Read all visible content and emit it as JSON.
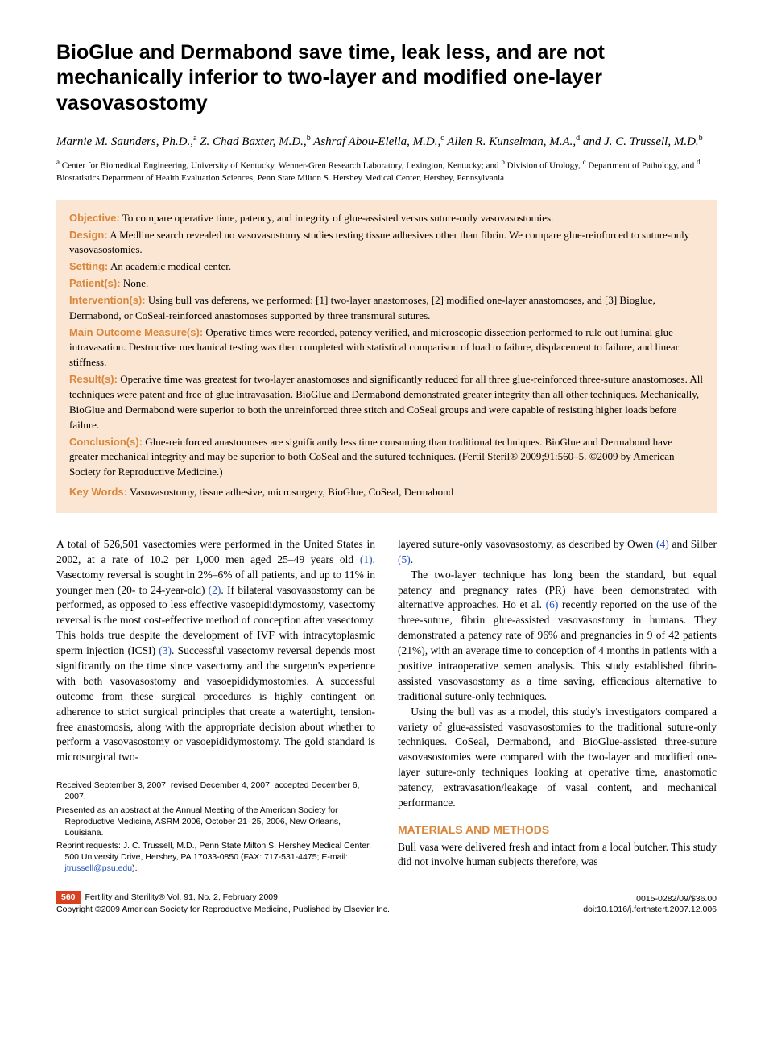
{
  "title": "BioGlue and Dermabond save time, leak less, and are not mechanically inferior to two-layer and modified one-layer vasovasostomy",
  "authors_html": "Marnie M. Saunders, Ph.D.,<sup>a</sup> Z. Chad Baxter, M.D.,<sup>b</sup> Ashraf Abou-Elella, M.D.,<sup>c</sup> Allen R. Kunselman, M.A.,<sup>d</sup> and J. C. Trussell, M.D.<sup>b</sup>",
  "affiliations_html": "<sup>a</sup> Center for Biomedical Engineering, University of Kentucky, Wenner-Gren Research Laboratory, Lexington, Kentucky; and <sup>b</sup> Division of Urology, <sup>c</sup> Department of Pathology, and <sup>d</sup> Biostatistics Department of Health Evaluation Sciences, Penn State Milton S. Hershey Medical Center, Hershey, Pennsylvania",
  "abstract": {
    "objective": {
      "label": "Objective:",
      "text": "To compare operative time, patency, and integrity of glue-assisted versus suture-only vasovasostomies."
    },
    "design": {
      "label": "Design:",
      "text": "A Medline search revealed no vasovasostomy studies testing tissue adhesives other than fibrin. We compare glue-reinforced to suture-only vasovasostomies."
    },
    "setting": {
      "label": "Setting:",
      "text": "An academic medical center."
    },
    "patients": {
      "label": "Patient(s):",
      "text": "None."
    },
    "interventions": {
      "label": "Intervention(s):",
      "text": "Using bull vas deferens, we performed: [1] two-layer anastomoses, [2] modified one-layer anastomoses, and [3] Bioglue, Dermabond, or CoSeal-reinforced anastomoses supported by three transmural sutures."
    },
    "outcomes": {
      "label": "Main Outcome Measure(s):",
      "text": "Operative times were recorded, patency verified, and microscopic dissection performed to rule out luminal glue intravasation. Destructive mechanical testing was then completed with statistical comparison of load to failure, displacement to failure, and linear stiffness."
    },
    "results": {
      "label": "Result(s):",
      "text": "Operative time was greatest for two-layer anastomoses and significantly reduced for all three glue-reinforced three-suture anastomoses. All techniques were patent and free of glue intravasation. BioGlue and Dermabond demonstrated greater integrity than all other techniques. Mechanically, BioGlue and Dermabond were superior to both the unreinforced three stitch and CoSeal groups and were capable of resisting higher loads before failure."
    },
    "conclusions": {
      "label": "Conclusion(s):",
      "text": "Glue-reinforced anastomoses are significantly less time consuming than traditional techniques. BioGlue and Dermabond have greater mechanical integrity and may be superior to both CoSeal and the sutured techniques. (Fertil Steril® 2009;91:560–5. ©2009 by American Society for Reproductive Medicine.)"
    },
    "keywords": {
      "label": "Key Words:",
      "text": "Vasovasostomy, tissue adhesive, microsurgery, BioGlue, CoSeal, Dermabond"
    }
  },
  "body": {
    "col1": {
      "p1a": "A total of 526,501 vasectomies were performed in the United States in 2002, at a rate of 10.2 per 1,000 men aged 25–49 years old ",
      "ref1": "(1)",
      "p1b": ". Vasectomy reversal is sought in 2%–6% of all patients, and up to 11% in younger men (20- to 24-year-old) ",
      "ref2": "(2)",
      "p1c": ". If bilateral vasovasostomy can be performed, as opposed to less effective vasoepididymostomy, vasectomy reversal is the most cost-effective method of conception after vasectomy. This holds true despite the development of IVF with intracytoplasmic sperm injection (ICSI) ",
      "ref3": "(3)",
      "p1d": ". Successful vasectomy reversal depends most significantly on the time since vasectomy and the surgeon's experience with both vasovasostomy and vasoepididymostomies. A successful outcome from these surgical procedures is highly contingent on adherence to strict surgical principles that create a watertight, tension-free anastomosis, along with the appropriate decision about whether to perform a vasovasostomy or vasoepididymostomy. The gold standard is microsurgical two-"
    },
    "col2": {
      "p1a": "layered suture-only vasovasostomy, as described by Owen ",
      "ref4": "(4)",
      "p1b": " and Silber ",
      "ref5": "(5)",
      "p1c": ".",
      "p2a": "The two-layer technique has long been the standard, but equal patency and pregnancy rates (PR) have been demonstrated with alternative approaches. Ho et al. ",
      "ref6": "(6)",
      "p2b": " recently reported on the use of the three-suture, fibrin glue-assisted vasovasostomy in humans. They demonstrated a patency rate of 96% and pregnancies in 9 of 42 patients (21%), with an average time to conception of 4 months in patients with a positive intraoperative semen analysis. This study established fibrin-assisted vasovasostomy as a time saving, efficacious alternative to traditional suture-only techniques.",
      "p3": "Using the bull vas as a model, this study's investigators compared a variety of glue-assisted vasovasostomies to the traditional suture-only techniques. CoSeal, Dermabond, and BioGlue-assisted three-suture vasovasostomies were compared with the two-layer and modified one-layer suture-only techniques looking at operative time, anastomotic patency, extravasation/leakage of vasal content, and mechanical performance.",
      "section_heading": "MATERIALS AND METHODS",
      "p4": "Bull vasa were delivered fresh and intact from a local butcher. This study did not involve human subjects therefore, was"
    }
  },
  "footnotes": {
    "received": "Received September 3, 2007; revised December 4, 2007; accepted December 6, 2007.",
    "presented": "Presented as an abstract at the Annual Meeting of the American Society for Reproductive Medicine, ASRM 2006, October 21–25, 2006, New Orleans, Louisiana.",
    "reprint_a": "Reprint requests: J. C. Trussell, M.D., Penn State Milton S. Hershey Medical Center, 500 University Drive, Hershey, PA 17033-0850 (FAX: 717-531-4475; E-mail: ",
    "email": "jtrussell@psu.edu",
    "reprint_b": ")."
  },
  "footer": {
    "page_number": "560",
    "journal_line1": "Fertility and Sterility® Vol. 91, No. 2, February 2009",
    "journal_line2": "Copyright ©2009 American Society for Reproductive Medicine, Published by Elsevier Inc.",
    "issn": "0015-0282/09/$36.00",
    "doi": "doi:10.1016/j.fertnstert.2007.12.006"
  },
  "colors": {
    "abstract_bg": "#fbe6d4",
    "accent": "#d8873c",
    "link": "#2050c0",
    "page_badge_bg": "#d84020"
  }
}
